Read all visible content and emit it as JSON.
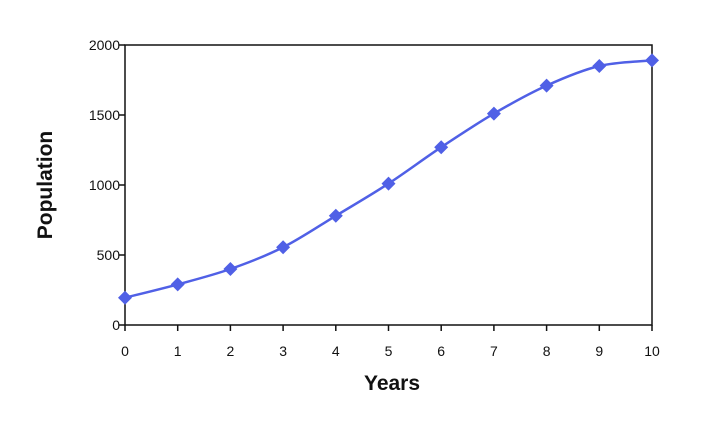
{
  "chart_data": {
    "type": "line",
    "title": "",
    "xlabel": "Years",
    "ylabel": "Population",
    "x": [
      0,
      1,
      2,
      3,
      4,
      5,
      6,
      7,
      8,
      9,
      10
    ],
    "series": [
      {
        "values": [
          195,
          290,
          400,
          555,
          780,
          1010,
          1270,
          1510,
          1710,
          1850,
          1890
        ]
      }
    ],
    "xlim": [
      0,
      10
    ],
    "ylim": [
      0,
      2000
    ],
    "xticks": [
      "0",
      "1",
      "2",
      "3",
      "4",
      "5",
      "6",
      "7",
      "8",
      "9",
      "10"
    ],
    "yticks": [
      "0",
      "500",
      "1000",
      "1500",
      "2000"
    ],
    "xtick_values": [
      0,
      1,
      2,
      3,
      4,
      5,
      6,
      7,
      8,
      9,
      10
    ],
    "ytick_values": [
      0,
      500,
      1000,
      1500,
      2000
    ],
    "grid": false,
    "legend": "none",
    "marker": "diamond",
    "line_color": "#5060e6",
    "marker_color": "#5060e6"
  }
}
